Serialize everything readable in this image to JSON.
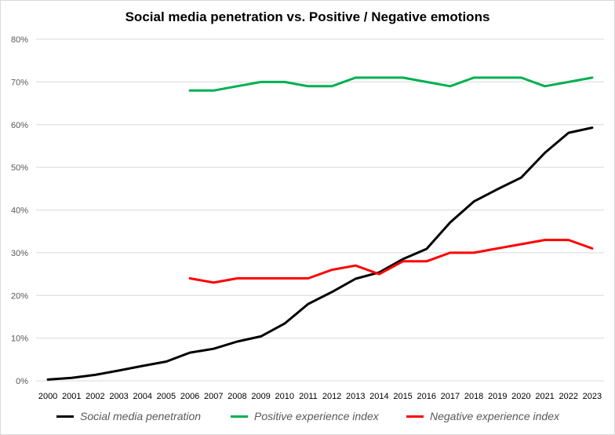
{
  "chart_data": {
    "type": "line",
    "title": "Social media penetration vs. Positive / Negative emotions",
    "xlabel": "",
    "ylabel": "",
    "ylim": [
      0,
      80
    ],
    "y_ticks": [
      "0%",
      "10%",
      "20%",
      "30%",
      "40%",
      "50%",
      "60%",
      "70%",
      "80%"
    ],
    "grid": "horizontal",
    "legend_position": "bottom",
    "categories": [
      "2000",
      "2001",
      "2002",
      "2003",
      "2004",
      "2005",
      "2006",
      "2007",
      "2008",
      "2009",
      "2010",
      "2011",
      "2012",
      "2013",
      "2014",
      "2015",
      "2016",
      "2017",
      "2018",
      "2019",
      "2020",
      "2021",
      "2022",
      "2023"
    ],
    "series": [
      {
        "name": "Social media penetration",
        "color": "#000000",
        "values": [
          0.3,
          0.7,
          1.4,
          2.4,
          3.5,
          4.5,
          6.6,
          7.5,
          9.2,
          10.4,
          13.4,
          18.0,
          20.8,
          23.9,
          25.4,
          28.5,
          30.9,
          37.1,
          42.0,
          44.9,
          47.6,
          53.4,
          58.1,
          59.3
        ]
      },
      {
        "name": "Positive experience index",
        "color": "#00b050",
        "values": [
          null,
          null,
          null,
          null,
          null,
          null,
          68,
          68,
          69,
          70,
          70,
          69,
          69,
          71,
          71,
          71,
          70,
          69,
          71,
          71,
          71,
          69,
          70,
          71
        ]
      },
      {
        "name": "Negative experience index",
        "color": "#ff0000",
        "values": [
          null,
          null,
          null,
          null,
          null,
          null,
          24,
          23,
          24,
          24,
          24,
          24,
          26,
          27,
          25,
          28,
          28,
          30,
          30,
          31,
          32,
          33,
          33,
          31
        ]
      }
    ]
  }
}
